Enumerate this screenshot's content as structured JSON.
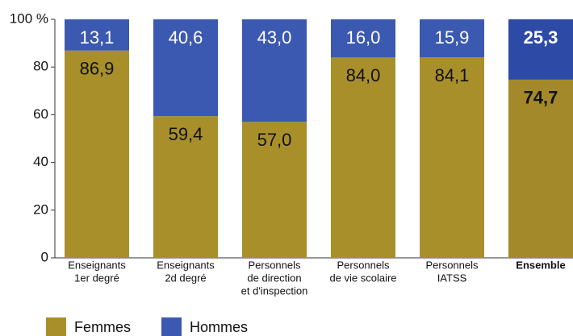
{
  "chart_data": {
    "type": "stacked_bar",
    "categories": [
      [
        "Enseignants",
        "1er degré"
      ],
      [
        "Enseignants",
        "2d degré"
      ],
      [
        "Personnels",
        "de direction",
        "et d'inspection"
      ],
      [
        "Personnels",
        "de vie scolaire"
      ],
      [
        "Personnels",
        "IATSS"
      ],
      [
        "Ensemble"
      ]
    ],
    "series": [
      {
        "name": "Femmes",
        "color": "#a88f2a",
        "colors": [
          "#a88f2a",
          "#a88f2a",
          "#a88f2a",
          "#a88f2a",
          "#a88f2a",
          "#a4892a"
        ],
        "values": [
          86.9,
          59.4,
          57.0,
          84.0,
          84.1,
          74.7
        ],
        "value_labels": [
          "86,9",
          "59,4",
          "57,0",
          "84,0",
          "84,1",
          "74,7"
        ]
      },
      {
        "name": "Hommes",
        "color": "#3b59b0",
        "colors": [
          "#3b59b0",
          "#3b59b0",
          "#3b59b0",
          "#3b59b0",
          "#3b59b0",
          "#2d4aa6"
        ],
        "values": [
          13.1,
          40.6,
          43.0,
          16.0,
          15.9,
          25.3
        ],
        "value_labels": [
          "13,1",
          "40,6",
          "43,0",
          "16,0",
          "15,9",
          "25,3"
        ]
      }
    ],
    "highlight": "Ensemble",
    "ylim": [
      0,
      100
    ],
    "yticks": [
      0,
      20,
      40,
      60,
      80,
      {
        "value": 100,
        "label": "100 %"
      }
    ]
  }
}
